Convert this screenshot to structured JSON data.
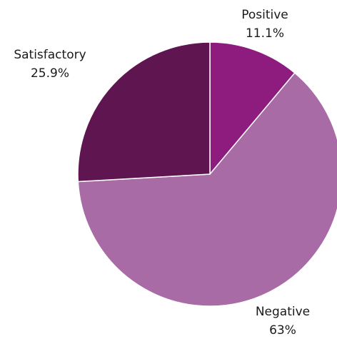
{
  "chart_data": {
    "type": "pie",
    "title": "",
    "slices": [
      {
        "label": "Positive",
        "value": 11.1,
        "display": "11.1%",
        "color": "#8e1b7e"
      },
      {
        "label": "Negative",
        "value": 63,
        "display": "63%",
        "color": "#a96ba6"
      },
      {
        "label": "Satisfactory",
        "value": 25.9,
        "display": "25.9%",
        "color": "#5f154f"
      }
    ],
    "start": "12 o'clock",
    "direction": "clockwise",
    "labels": "outside each slice"
  }
}
